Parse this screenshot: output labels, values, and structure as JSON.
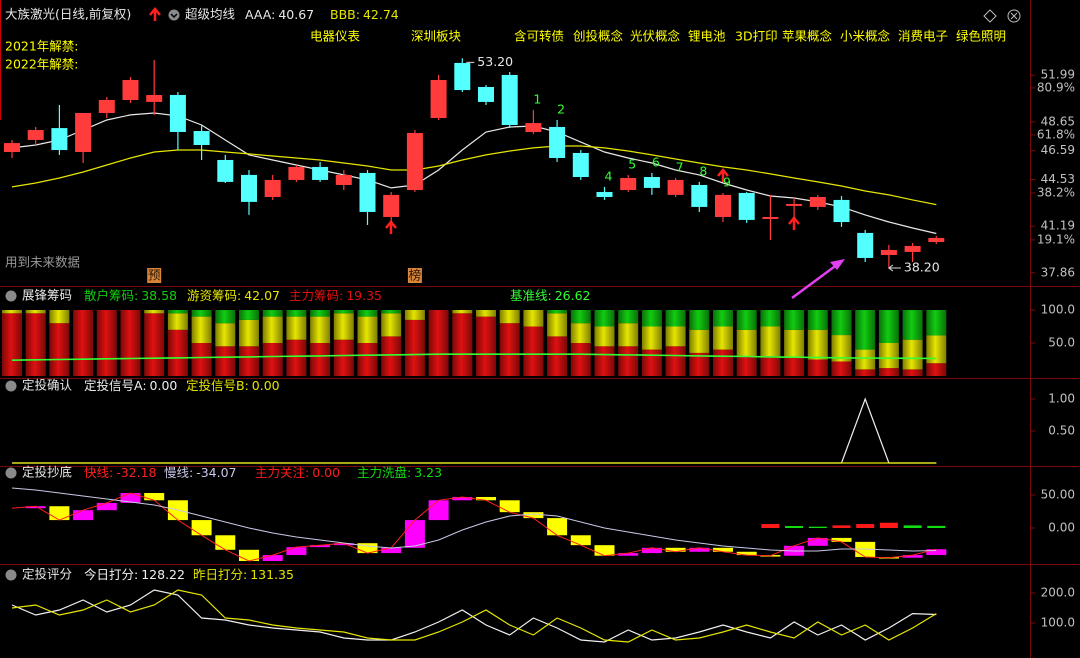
{
  "chart_data": [
    {
      "type": "candlestick",
      "title": "大族激光(日线,前复权)",
      "indicator": "超级均线",
      "up_color": "#ff3b3b",
      "down_color": "#54ffff",
      "open": [
        46.5,
        47.36,
        48.21,
        46.5,
        49.29,
        50.22,
        50.08,
        50.58,
        48.0,
        45.93,
        44.86,
        43.28,
        44.5,
        45.43,
        44.14,
        45.0,
        41.85,
        43.78,
        48.93,
        52.87,
        51.15,
        52.01,
        47.93,
        48.29,
        46.43,
        43.64,
        43.78,
        44.71,
        43.43,
        44.14,
        41.85,
        43.57,
        41.71,
        42.64,
        42.57,
        43.07,
        40.71,
        39.13,
        39.35,
        40.06
      ],
      "high": [
        47.36,
        48.29,
        49.86,
        49.29,
        50.43,
        51.86,
        53.08,
        50.79,
        48.43,
        46.29,
        45.21,
        44.86,
        45.57,
        45.79,
        45.21,
        45.21,
        43.64,
        48.07,
        52.01,
        53.2,
        51.29,
        52.22,
        49.5,
        48.79,
        46.64,
        44.0,
        44.86,
        45.0,
        44.64,
        44.36,
        43.57,
        43.64,
        43.43,
        43.21,
        43.43,
        43.35,
        40.92,
        39.85,
        39.99,
        40.49
      ],
      "low": [
        46.07,
        47.0,
        46.29,
        45.71,
        48.93,
        50.0,
        49.15,
        46.64,
        45.93,
        44.28,
        42.0,
        43.07,
        44.36,
        44.36,
        43.78,
        41.28,
        41.49,
        43.64,
        48.79,
        50.79,
        49.86,
        48.21,
        47.79,
        45.79,
        44.5,
        43.07,
        43.64,
        43.43,
        43.28,
        42.21,
        41.49,
        41.42,
        40.21,
        41.78,
        42.35,
        41.14,
        38.63,
        38.2,
        38.63,
        39.92
      ],
      "close": [
        47.14,
        48.07,
        46.64,
        49.29,
        50.22,
        51.65,
        50.58,
        47.93,
        47.0,
        44.36,
        42.93,
        44.5,
        45.43,
        44.5,
        44.86,
        42.21,
        43.43,
        47.86,
        51.65,
        50.93,
        50.08,
        48.43,
        48.57,
        46.07,
        44.71,
        43.28,
        44.64,
        43.93,
        44.5,
        42.57,
        43.43,
        41.64,
        41.85,
        42.78,
        43.28,
        41.49,
        38.92,
        39.49,
        39.78,
        40.35
      ],
      "series": [
        {
          "name": "AAA:",
          "color": "#e8e8e8",
          "values": [
            46.79,
            47.0,
            47.36,
            48.07,
            48.79,
            49.15,
            49.29,
            49.08,
            48.43,
            47.36,
            46.29,
            45.93,
            45.57,
            45.21,
            44.86,
            44.5,
            43.93,
            44.14,
            45.21,
            46.64,
            47.93,
            48.29,
            48.36,
            47.93,
            47.21,
            46.5,
            46.07,
            45.71,
            45.21,
            44.86,
            44.28,
            43.78,
            43.35,
            43.21,
            42.93,
            42.57,
            42.0,
            41.49,
            41.06,
            40.67
          ]
        },
        {
          "name": "BBB:",
          "color": "#e6e600",
          "values": [
            44.0,
            44.28,
            44.64,
            45.07,
            45.57,
            46.07,
            46.5,
            46.64,
            46.64,
            46.5,
            46.36,
            46.21,
            46.07,
            45.93,
            45.71,
            45.5,
            45.21,
            45.21,
            45.5,
            45.93,
            46.29,
            46.57,
            46.79,
            46.93,
            46.93,
            46.79,
            46.57,
            46.29,
            46.0,
            45.71,
            45.43,
            45.21,
            44.93,
            44.64,
            44.36,
            44.07,
            43.71,
            43.43,
            43.07,
            42.74
          ]
        }
      ],
      "max_label": "53.20",
      "min_label": "38.20",
      "signal_color": "#33ff33",
      "signal_labels": [
        null,
        null,
        null,
        null,
        null,
        null,
        null,
        null,
        null,
        null,
        null,
        null,
        null,
        null,
        null,
        null,
        null,
        null,
        null,
        null,
        null,
        null,
        "1",
        "2",
        null,
        "4",
        "5",
        "6",
        "7",
        "8",
        "9",
        null,
        null,
        null,
        null,
        null,
        null,
        null,
        null,
        null
      ],
      "bottom_tags": [
        null,
        null,
        null,
        null,
        null,
        null,
        "预",
        null,
        null,
        null,
        null,
        null,
        null,
        null,
        null,
        null,
        null,
        "榜",
        null,
        null,
        null,
        null,
        null,
        null,
        null,
        null,
        null,
        null,
        null,
        null,
        null,
        null,
        null,
        null,
        null,
        null,
        null,
        null,
        null,
        null
      ],
      "concepts": [
        "电器仪表",
        "深圳板块",
        "含可转债",
        "创投概念",
        "光伏概念",
        "锂电池",
        "3D打印",
        "苹果概念",
        "小米概念",
        "消费电子",
        "绿色照明"
      ],
      "notes": [
        "2021年解禁:",
        "2022年解禁:"
      ],
      "future_note": "用到未来数据",
      "ylim": [
        37.2,
        56.8
      ],
      "yticks": [
        51.99,
        48.65,
        46.59,
        44.53,
        41.19,
        37.86
      ],
      "y2lim": [
        2,
        113.4
      ],
      "y2ticks": [
        {
          "value": 80.9,
          "label": "80.9%"
        },
        {
          "value": 61.8,
          "label": "61.8%"
        },
        {
          "value": 38.2,
          "label": "38.2%"
        },
        {
          "value": 19.1,
          "label": "19.1%"
        }
      ]
    },
    {
      "type": "stacked_bar",
      "title": "展锋筹码",
      "series": [
        {
          "name": "散户筹码:",
          "kind": "bar",
          "color": "#11cc11",
          "values": [
            0,
            0,
            0,
            0,
            0,
            0,
            0,
            5,
            10,
            20,
            15,
            10,
            10,
            10,
            5,
            10,
            5,
            0,
            0,
            0,
            0,
            0,
            0,
            5,
            20,
            25,
            20,
            25,
            25,
            30,
            25,
            30,
            25,
            30,
            30,
            38,
            60,
            50,
            45,
            38.58
          ]
        },
        {
          "name": "游资筹码:",
          "kind": "bar",
          "color": "#e6e600",
          "values": [
            5,
            5,
            20,
            0,
            0,
            0,
            5,
            25,
            40,
            35,
            40,
            40,
            35,
            40,
            40,
            40,
            35,
            15,
            0,
            5,
            10,
            20,
            25,
            35,
            30,
            30,
            35,
            35,
            30,
            35,
            35,
            40,
            45,
            42,
            45,
            40,
            30,
            38,
            45,
            42.07
          ]
        },
        {
          "name": "主力筹码:",
          "kind": "bar",
          "color": "#e01010",
          "values": [
            95,
            95,
            80,
            100,
            100,
            100,
            95,
            70,
            50,
            45,
            45,
            50,
            55,
            50,
            55,
            50,
            60,
            85,
            100,
            95,
            90,
            80,
            75,
            60,
            50,
            45,
            45,
            40,
            45,
            35,
            40,
            30,
            30,
            28,
            25,
            22,
            10,
            12,
            10,
            19.35
          ]
        },
        {
          "name": "基准线:",
          "kind": "line",
          "color": "#33ff33",
          "values": [
            24,
            24.5,
            25,
            25.5,
            26,
            26.5,
            27,
            27.5,
            28,
            28.5,
            29,
            29.5,
            30,
            30.5,
            31,
            31.5,
            32,
            32.5,
            33,
            33,
            33,
            33,
            33,
            33,
            33,
            32.5,
            32,
            31.5,
            31,
            30.5,
            30,
            29.5,
            29,
            28.5,
            28,
            27.5,
            27.2,
            27,
            26.8,
            26.62
          ]
        }
      ],
      "ylim": [
        0,
        100
      ],
      "yticks": [
        {
          "value": 100,
          "label": "100.0"
        },
        {
          "value": 50,
          "label": "50.0"
        }
      ]
    },
    {
      "type": "line",
      "title": "定投确认",
      "series": [
        {
          "name": "定投信号A:",
          "kind": "line",
          "color": "#f0f0f0",
          "values": [
            0,
            0,
            0,
            0,
            0,
            0,
            0,
            0,
            0,
            0,
            0,
            0,
            0,
            0,
            0,
            0,
            0,
            0,
            0,
            0,
            0,
            0,
            0,
            0,
            0,
            0,
            0,
            0,
            0,
            0,
            0,
            0,
            0,
            0,
            0,
            0,
            1,
            0,
            0,
            0
          ],
          "value_labels": [
            null,
            null,
            null,
            null,
            null,
            null,
            null,
            null,
            null,
            null,
            null,
            null,
            null,
            null,
            null,
            null,
            null,
            null,
            null,
            null,
            null,
            null,
            null,
            null,
            null,
            null,
            null,
            null,
            null,
            null,
            null,
            null,
            null,
            null,
            null,
            null,
            null,
            null,
            null,
            "0.00"
          ]
        },
        {
          "name": "定投信号B:",
          "kind": "line",
          "color": "#e6e600",
          "values": [
            0,
            0,
            0,
            0,
            0,
            0,
            0,
            0,
            0,
            0,
            0,
            0,
            0,
            0,
            0,
            0,
            0,
            0,
            0,
            0,
            0,
            0,
            0,
            0,
            0,
            0,
            0,
            0,
            0,
            0,
            0,
            0,
            0,
            0,
            0,
            0,
            0,
            0,
            0,
            0
          ],
          "value_labels": [
            null,
            null,
            null,
            null,
            null,
            null,
            null,
            null,
            null,
            null,
            null,
            null,
            null,
            null,
            null,
            null,
            null,
            null,
            null,
            null,
            null,
            null,
            null,
            null,
            null,
            null,
            null,
            null,
            null,
            null,
            null,
            null,
            null,
            null,
            null,
            null,
            null,
            null,
            null,
            "0.00"
          ]
        }
      ],
      "ylim": [
        0,
        1.1
      ],
      "yticks": [
        {
          "value": 1,
          "label": "1.00"
        },
        {
          "value": 0.5,
          "label": "0.50"
        }
      ]
    },
    {
      "type": "combo",
      "title": "定投抄底",
      "rise_color": "#ff00ff",
      "fall_color": "#ffff00",
      "series": [
        {
          "name": "快线:",
          "kind": "boxes",
          "color": "#ff2020",
          "values": [
            30,
            33,
            12,
            27,
            38,
            53,
            42,
            12,
            -11,
            -33,
            -50,
            -41,
            -29,
            -26,
            -23,
            -38,
            -30,
            12,
            42,
            47,
            42,
            24,
            15,
            -11,
            -26,
            -42,
            -38,
            -30,
            -36,
            -30,
            -36,
            -41,
            -42,
            -27,
            -15,
            -21,
            -44,
            -45,
            -41,
            -32.18
          ]
        },
        {
          "name": "慢线:",
          "kind": "line",
          "color": "#c8c8e8",
          "values": [
            60.6,
            57.6,
            53.0,
            48.5,
            43.9,
            39.4,
            34.8,
            27.3,
            18.2,
            9.1,
            0,
            -7.6,
            -13.6,
            -18.2,
            -22.7,
            -27.3,
            -30.3,
            -27.3,
            -18.2,
            -3.0,
            9.1,
            18.2,
            21.2,
            18.2,
            9.1,
            0,
            -6.1,
            -12.1,
            -18.2,
            -22.7,
            -27.3,
            -30.3,
            -33.3,
            -34.8,
            -34.8,
            -31.8,
            -31.8,
            -33.3,
            -34.8,
            -34.07
          ]
        },
        {
          "name": "主力关注:",
          "kind": "bar",
          "color": "#ff1a1a",
          "values": [
            0,
            0,
            0,
            0,
            0,
            0,
            0,
            0,
            0,
            0,
            0,
            0,
            0,
            0,
            0,
            0,
            0,
            0,
            0,
            0,
            0,
            0,
            0,
            0,
            0,
            0,
            0,
            0,
            0,
            0,
            0,
            0,
            6,
            0,
            0,
            4,
            6,
            8,
            0,
            0
          ],
          "value_labels": [
            null,
            null,
            null,
            null,
            null,
            null,
            null,
            null,
            null,
            null,
            null,
            null,
            null,
            null,
            null,
            null,
            null,
            null,
            null,
            null,
            null,
            null,
            null,
            null,
            null,
            null,
            null,
            null,
            null,
            null,
            null,
            null,
            null,
            null,
            null,
            null,
            null,
            null,
            null,
            "0.00"
          ]
        },
        {
          "name": "主力洗盘:",
          "kind": "bar",
          "color": "#11dd11",
          "values": [
            0,
            0,
            0,
            0,
            0,
            0,
            0,
            0,
            0,
            0,
            0,
            0,
            0,
            0,
            0,
            0,
            0,
            0,
            0,
            0,
            0,
            0,
            0,
            0,
            0,
            0,
            0,
            0,
            0,
            0,
            0,
            0,
            0,
            3,
            2,
            0,
            0,
            0,
            4,
            3.23
          ]
        }
      ],
      "ylim": [
        -51.5,
        69.7
      ],
      "yticks": [
        {
          "value": 50,
          "label": "50.00"
        },
        {
          "value": 0,
          "label": "0.00"
        }
      ]
    },
    {
      "type": "line",
      "title": "定投评分",
      "series": [
        {
          "name": "今日打分:",
          "kind": "line",
          "color": "#f0f0f0",
          "values": [
            160,
            126.7,
            143.3,
            176.7,
            136.7,
            160,
            210,
            193.3,
            116.7,
            110,
            93.3,
            83.3,
            76.7,
            70,
            50,
            43.3,
            43.3,
            70,
            103.3,
            143.3,
            93.3,
            60,
            116.7,
            83.3,
            43.3,
            36.7,
            76.7,
            43.3,
            50,
            70,
            93.3,
            70,
            50,
            103.3,
            60,
            93.3,
            43.3,
            83.3,
            131.35,
            128.22
          ]
        },
        {
          "name": "昨日打分:",
          "kind": "line",
          "color": "#e6e600",
          "values": [
            150,
            160,
            126.7,
            143.3,
            176.7,
            136.7,
            160,
            210,
            193.3,
            116.7,
            110,
            93.3,
            83.3,
            76.7,
            70,
            50,
            43.3,
            43.3,
            70,
            103.3,
            143.3,
            93.3,
            60,
            116.7,
            83.3,
            43.3,
            36.7,
            76.7,
            43.3,
            50,
            70,
            93.3,
            70,
            50,
            103.3,
            60,
            93.3,
            43.3,
            83.3,
            131.35
          ]
        }
      ],
      "ylim": [
        -6.7,
        236.7
      ],
      "yticks": [
        {
          "value": 200,
          "label": "200.0"
        },
        {
          "value": 100,
          "label": "100.0"
        }
      ]
    }
  ]
}
